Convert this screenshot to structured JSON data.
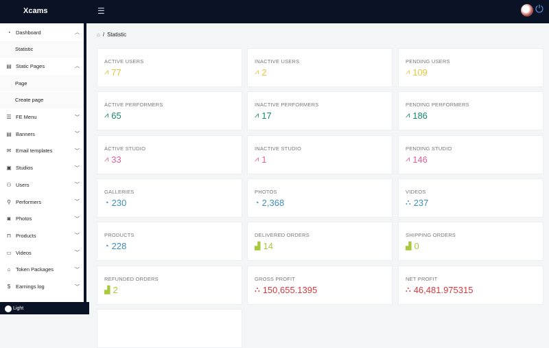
{
  "header": {
    "logo": "Xcams",
    "menu_icon": "menu-fold-icon",
    "logout_icon": "logout-icon"
  },
  "sidebar": {
    "items": [
      {
        "label": "Dashboard",
        "icon": "dashboard-icon",
        "chevron": "up"
      },
      {
        "label": "Statistic",
        "sub": true
      },
      {
        "label": "Static Pages",
        "icon": "file-icon",
        "chevron": "up"
      },
      {
        "label": "Page",
        "sub": true
      },
      {
        "label": "Create page",
        "sub": true
      },
      {
        "label": "FE Menu",
        "icon": "menu-icon",
        "chevron": "down"
      },
      {
        "label": "Banners",
        "icon": "file-icon",
        "chevron": "down"
      },
      {
        "label": "Email templates",
        "icon": "mail-icon",
        "chevron": "down"
      },
      {
        "label": "Studios",
        "icon": "studio-icon",
        "chevron": "down"
      },
      {
        "label": "Users",
        "icon": "user-icon",
        "chevron": "down"
      },
      {
        "label": "Performers",
        "icon": "pin-icon",
        "chevron": "down"
      },
      {
        "label": "Photos",
        "icon": "camera-icon",
        "chevron": "down"
      },
      {
        "label": "Products",
        "icon": "bag-icon",
        "chevron": "down"
      },
      {
        "label": "Videos",
        "icon": "video-icon",
        "chevron": "down"
      },
      {
        "label": "Token Packages",
        "icon": "bank-icon",
        "chevron": "down"
      },
      {
        "label": "Earnings log",
        "icon": "dollar-icon",
        "chevron": "down"
      }
    ],
    "theme_label": "Light"
  },
  "breadcrumb": {
    "separator": "/",
    "current": "Statistic"
  },
  "colors": {
    "yellow": "#e6c438",
    "green": "#16866a",
    "pink": "#e0609a",
    "blue": "#3f8fb8",
    "lime": "#a9c93c",
    "red": "#d8383a"
  },
  "cards": [
    {
      "label": "ACTIVE USERS",
      "value": "77",
      "color": "yellow",
      "icon": "line-chart-icon"
    },
    {
      "label": "INACTIVE USERS",
      "value": "2",
      "color": "yellow",
      "icon": "line-chart-icon"
    },
    {
      "label": "PENDING USERS",
      "value": "109",
      "color": "yellow",
      "icon": "line-chart-icon"
    },
    {
      "label": "ACTIVE PERFORMERS",
      "value": "65",
      "color": "green",
      "icon": "line-chart-icon"
    },
    {
      "label": "INACTIVE PERFORMERS",
      "value": "17",
      "color": "green",
      "icon": "line-chart-icon"
    },
    {
      "label": "PENDING PERFORMERS",
      "value": "186",
      "color": "green",
      "icon": "line-chart-icon"
    },
    {
      "label": "ACTIVE STUDIO",
      "value": "33",
      "color": "pink",
      "icon": "line-chart-icon"
    },
    {
      "label": "INACTIVE STUDIO",
      "value": "1",
      "color": "pink",
      "icon": "line-chart-icon"
    },
    {
      "label": "PENDING STUDIO",
      "value": "146",
      "color": "pink",
      "icon": "line-chart-icon"
    },
    {
      "label": "GALLERIES",
      "value": "230",
      "color": "blue",
      "icon": "pie-chart-icon"
    },
    {
      "label": "PHOTOS",
      "value": "2,368",
      "color": "blue",
      "icon": "pie-chart-icon"
    },
    {
      "label": "VIDEOS",
      "value": "237",
      "color": "blue",
      "icon": "dot-chart-icon"
    },
    {
      "label": "PRODUCTS",
      "value": "228",
      "color": "blue",
      "icon": "pie-chart-icon"
    },
    {
      "label": "DELIVERED ORDERS",
      "value": "14",
      "color": "lime",
      "icon": "area-chart-icon"
    },
    {
      "label": "SHIPPING ORDERS",
      "value": "0",
      "color": "lime",
      "icon": "area-chart-icon"
    },
    {
      "label": "REFUNDED ORDERS",
      "value": "2",
      "color": "lime",
      "icon": "area-chart-icon"
    },
    {
      "label": "GROSS PROFIT",
      "value": "150,655.1395",
      "color": "red",
      "icon": "dot-chart-icon"
    },
    {
      "label": "NET PROFIT",
      "value": "46,481.975315",
      "color": "red",
      "icon": "dot-chart-icon"
    }
  ]
}
